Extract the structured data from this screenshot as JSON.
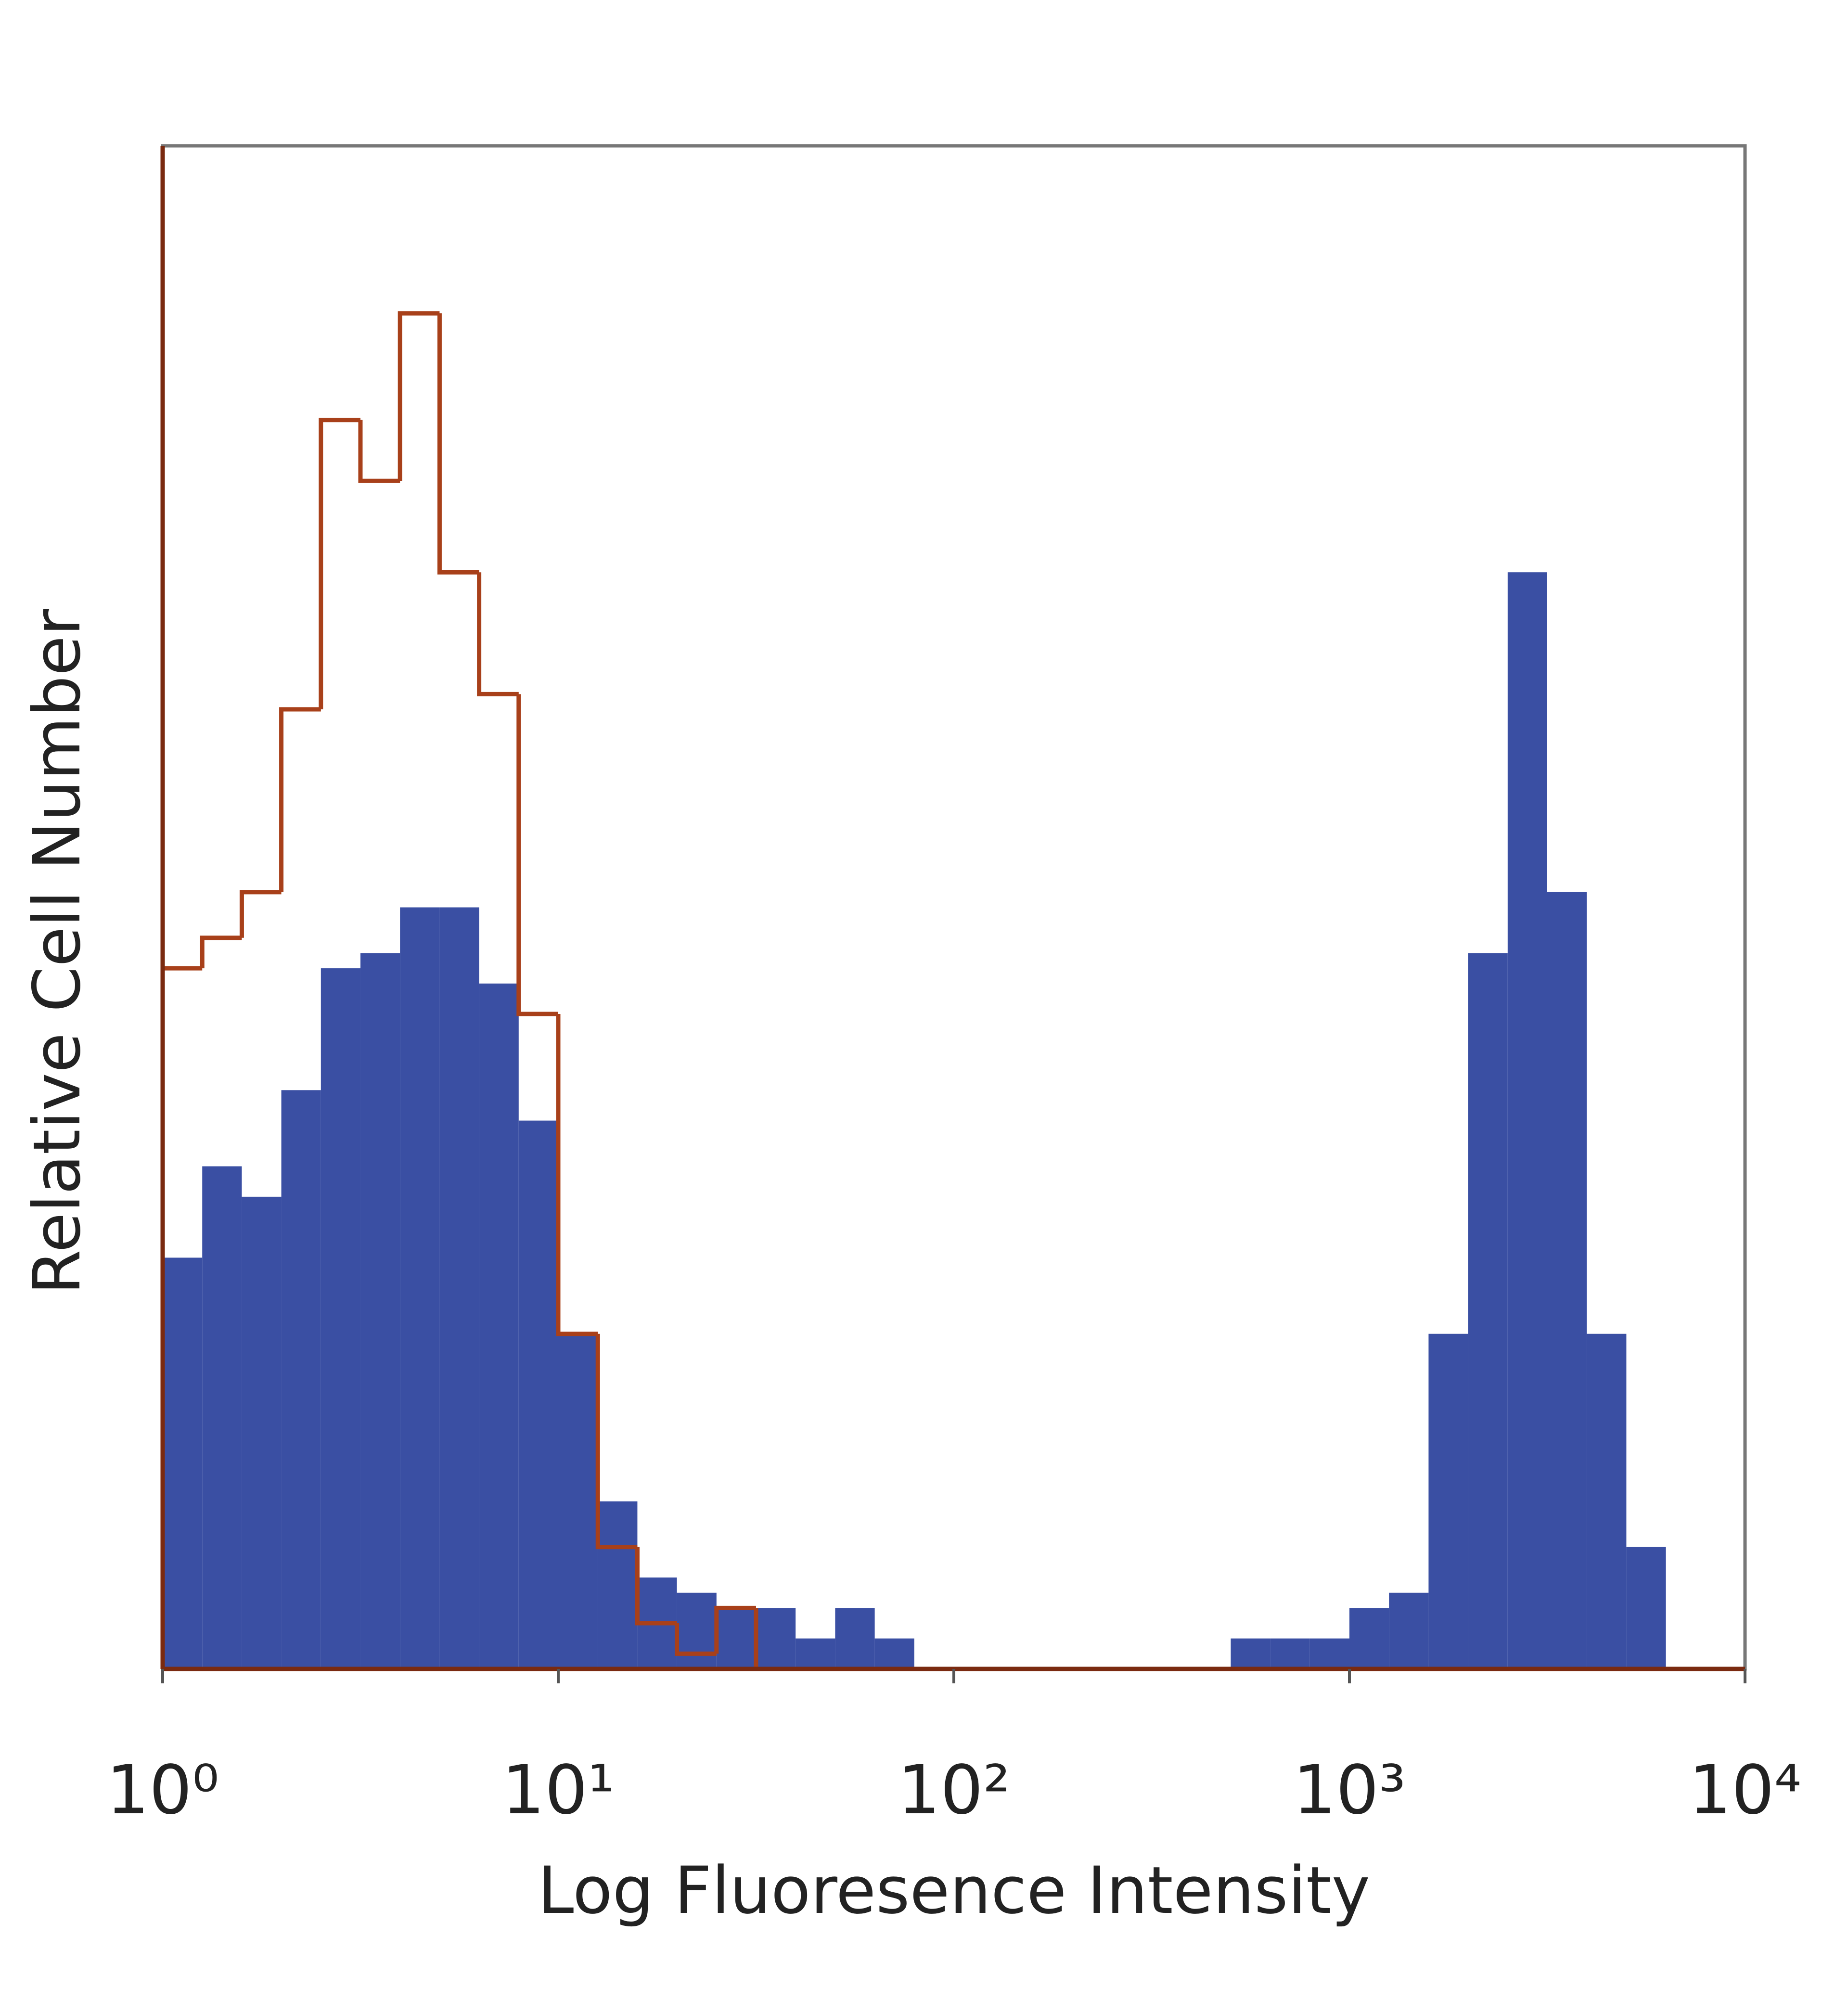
{
  "chart_data": {
    "type": "histogram",
    "xlabel": "Log Fluoresence Intensity",
    "ylabel": "Relative Cell Number",
    "log_x": true,
    "xlim": [
      1,
      10000
    ],
    "xticks": [
      {
        "value": 1,
        "label": "10⁰"
      },
      {
        "value": 10,
        "label": "10¹"
      },
      {
        "value": 100,
        "label": "10²"
      },
      {
        "value": 1000,
        "label": "10³"
      },
      {
        "value": 10000,
        "label": "10⁴"
      }
    ],
    "ylim": [
      0,
      100
    ],
    "bins": [
      1,
      1.259,
      1.585,
      1.995,
      2.512,
      3.162,
      3.981,
      5.012,
      6.31,
      7.943,
      10,
      12.59,
      15.85,
      19.95,
      25.12,
      31.62,
      39.81,
      50.12,
      63.1,
      79.43,
      100,
      125.9,
      158.5,
      199.5,
      251.2,
      316.2,
      398.1,
      501.2,
      631,
      794.3,
      1000,
      1259,
      1585,
      1995,
      2512,
      3162,
      3981,
      5012,
      6310,
      7943,
      10000
    ],
    "series": [
      {
        "color": "#3a4fa3",
        "fill": true,
        "values": [
          27,
          33,
          31,
          38,
          46,
          47,
          50,
          50,
          45,
          36,
          22,
          11,
          6,
          5,
          4,
          4,
          2,
          4,
          2,
          0,
          0,
          0,
          0,
          0,
          0,
          0,
          0,
          2,
          2,
          2,
          4,
          5,
          22,
          47,
          72,
          51,
          22,
          8,
          0,
          0
        ]
      },
      {
        "color": "#a8401a",
        "fill": false,
        "values": [
          46,
          48,
          51,
          63,
          82,
          78,
          89,
          72,
          64,
          43,
          22,
          8,
          3,
          1,
          4,
          0,
          0,
          0,
          0,
          0,
          0,
          0,
          0,
          0,
          0,
          0,
          0,
          0,
          0,
          0,
          0,
          0,
          0,
          0,
          0,
          0,
          0,
          0,
          0,
          0
        ]
      }
    ]
  }
}
